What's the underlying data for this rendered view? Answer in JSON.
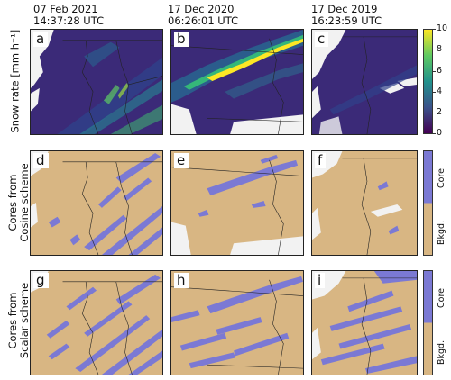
{
  "columns": [
    {
      "date": "07 Feb 2021",
      "time": "14:37:28 UTC"
    },
    {
      "date": "17 Dec 2020",
      "time": "06:26:01 UTC"
    },
    {
      "date": "17 Dec 2019",
      "time": "16:23:59 UTC"
    }
  ],
  "rows": [
    {
      "label_line1": "Snow rate [mm h⁻¹]",
      "label_line2": ""
    },
    {
      "label_line1": "Cores from",
      "label_line2": "Cosine scheme"
    },
    {
      "label_line1": "Cores from",
      "label_line2": "Scalar scheme"
    }
  ],
  "panels": [
    "a",
    "b",
    "c",
    "d",
    "e",
    "f",
    "g",
    "h",
    "i"
  ],
  "snow_colorbar": {
    "ticks": [
      "10",
      "8",
      "6",
      "4",
      "2",
      "0"
    ],
    "min": 0,
    "max": 10,
    "colors": [
      "#440154",
      "#3b528b",
      "#21918c",
      "#5ec962",
      "#fde725"
    ]
  },
  "core_colorbar": {
    "core_label": "Core",
    "bkgd_label": "Bkgd.",
    "core_color": "#7b79d4",
    "bkgd_color": "#d8b683"
  }
}
